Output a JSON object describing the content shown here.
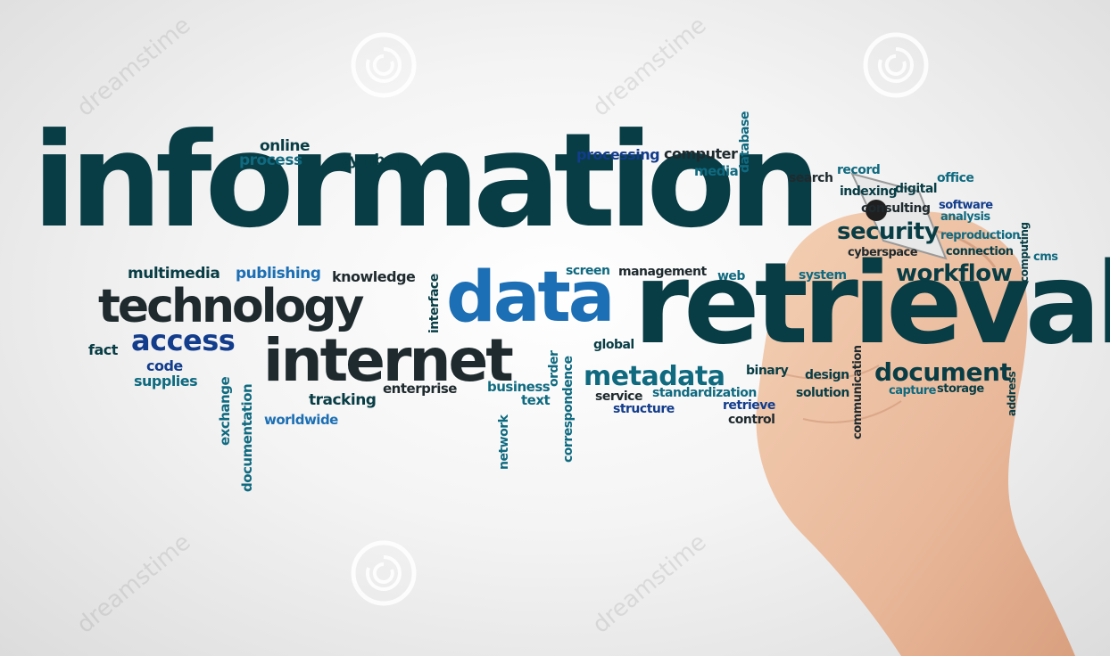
{
  "words": {
    "information": "information",
    "retrieval": "retrieval",
    "data": "data",
    "technology": "technology",
    "internet": "internet",
    "access": "access",
    "metadata": "metadata",
    "document": "document",
    "security": "security",
    "workflow": "workflow",
    "online": "online",
    "process": "process",
    "symbol": "symbol",
    "processing": "processing",
    "computer": "computer",
    "media": "media",
    "database": "database",
    "search": "search",
    "record": "record",
    "office": "office",
    "indexing": "indexing",
    "digital": "digital",
    "consulting": "consulting",
    "software": "software",
    "analysis": "analysis",
    "reproduction": "reproduction",
    "cyberspace": "cyberspace",
    "connection": "connection",
    "computing": "computing",
    "cms": "cms",
    "multimedia": "multimedia",
    "publishing": "publishing",
    "knowledge": "knowledge",
    "interface": "interface",
    "screen": "screen",
    "management": "management",
    "web": "web",
    "system": "system",
    "fact": "fact",
    "code": "code",
    "supplies": "supplies",
    "exchange": "exchange",
    "documentation": "documentation",
    "tracking": "tracking",
    "worldwide": "worldwide",
    "enterprise": "enterprise",
    "business": "business",
    "text": "text",
    "network": "network",
    "order": "order",
    "correspondence": "correspondence",
    "global": "global",
    "service": "service",
    "standardization": "standardization",
    "structure": "structure",
    "retrieve": "retrieve",
    "control": "control",
    "binary": "binary",
    "design": "design",
    "solution": "solution",
    "communication": "communication",
    "capture": "capture",
    "storage": "storage",
    "address": "address"
  },
  "watermark": {
    "text": "dreamstime"
  },
  "colors": {
    "dark_teal": "#083d45",
    "teal": "#0f6a80",
    "blue": "#1c6fb4",
    "navy": "#123c8c"
  }
}
